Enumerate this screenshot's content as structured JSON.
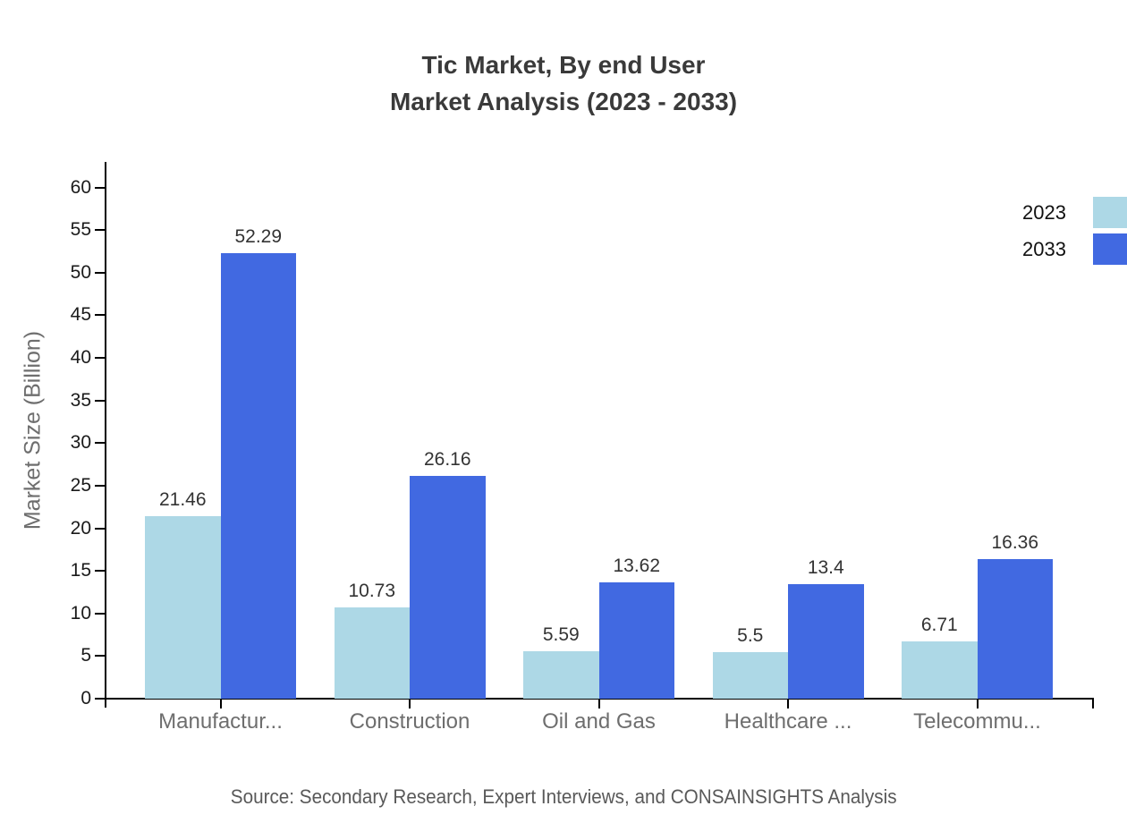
{
  "title": {
    "line1": "Tic Market, By end User",
    "line2": "Market Analysis (2023 - 2033)"
  },
  "source": "Source: Secondary Research, Expert Interviews, and CONSAINSIGHTS Analysis",
  "chart_data": {
    "type": "bar",
    "title": "Tic Market, By end User Market Analysis (2023 - 2033)",
    "categories": [
      "Manufactur...",
      "Construction",
      "Oil and Gas",
      "Healthcare ...",
      "Telecommu..."
    ],
    "series": [
      {
        "name": "2023",
        "color": "#ADD8E6",
        "values": [
          21.46,
          10.73,
          5.59,
          5.5,
          6.71
        ]
      },
      {
        "name": "2033",
        "color": "#4169E1",
        "values": [
          52.29,
          26.16,
          13.62,
          13.4,
          16.36
        ]
      }
    ],
    "value_labels": {
      "2023": [
        "21.46",
        "10.73",
        "5.59",
        "5.5",
        "6.71"
      ],
      "2033": [
        "52.29",
        "26.16",
        "13.62",
        "13.4",
        "16.36"
      ]
    },
    "xlabel": "",
    "ylabel": "Market Size (Billion)",
    "ylim": [
      0,
      63
    ],
    "yticks": [
      0,
      5,
      10,
      15,
      20,
      25,
      30,
      35,
      40,
      45,
      50,
      55,
      60
    ],
    "grid": false,
    "legend_position": "top-right",
    "colors": {
      "title": "#3a3a3a",
      "axis": "#000000",
      "tick_labels": "#1a1a1a",
      "category_labels": "#6e6e6e",
      "value_labels": "#333333",
      "source_text": "#595959"
    }
  }
}
